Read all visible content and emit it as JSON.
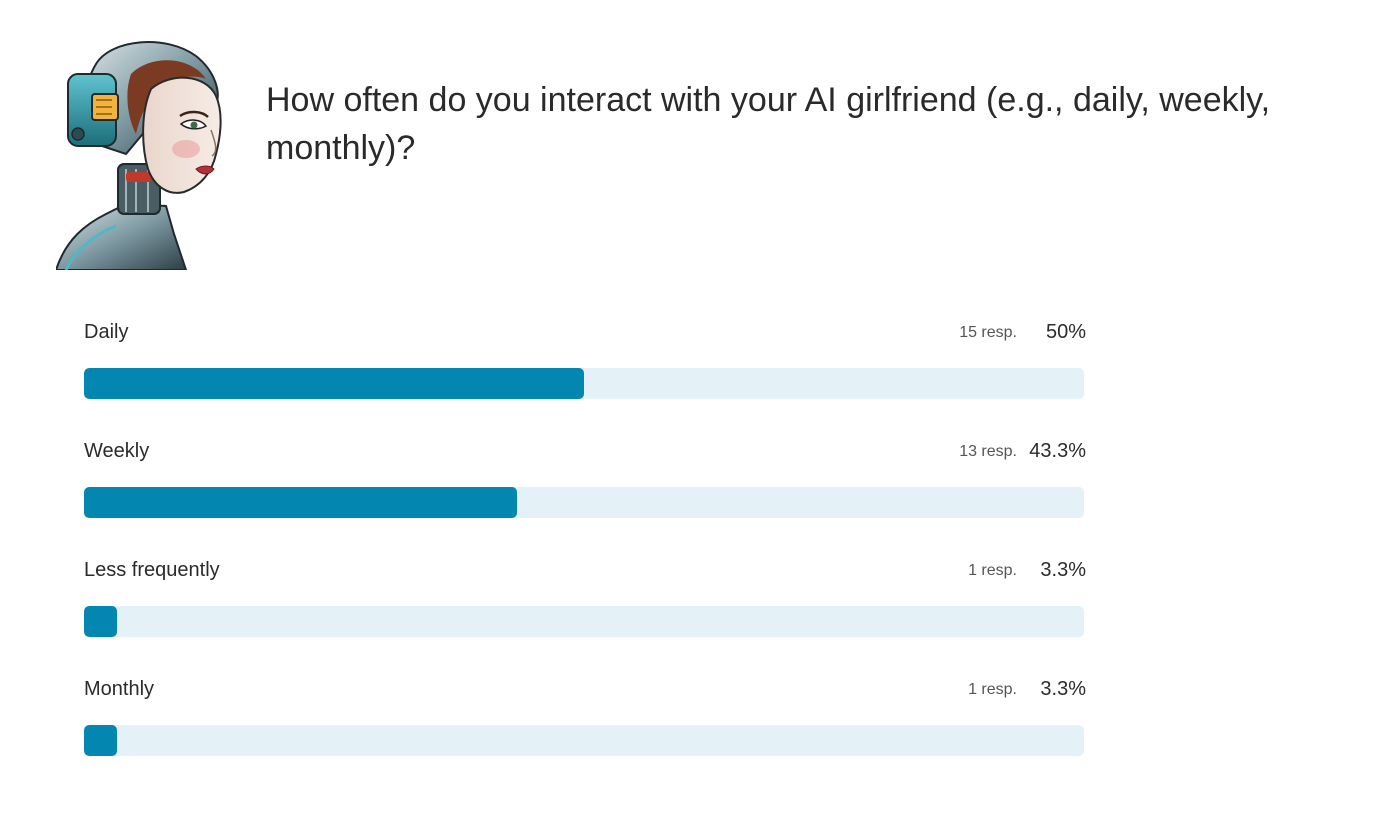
{
  "question": {
    "text": "How often do you interact with your AI girlfriend (e.g., daily, weekly, monthly)?"
  },
  "avatar": {
    "icon": "robot-woman-portrait"
  },
  "colors": {
    "bar_fill": "#0386b0",
    "bar_track": "#e4f1f7"
  },
  "chart_data": {
    "type": "bar",
    "orientation": "horizontal",
    "title": "How often do you interact with your AI girlfriend (e.g., daily, weekly, monthly)?",
    "categories": [
      "Daily",
      "Weekly",
      "Less frequently",
      "Monthly"
    ],
    "responses": [
      15,
      13,
      1,
      1
    ],
    "values": [
      50,
      43.3,
      3.3,
      3.3
    ],
    "xlim": [
      0,
      100
    ],
    "items": [
      {
        "label": "Daily",
        "responses_text": "15 resp.",
        "percent_text": "50%",
        "percent": 50
      },
      {
        "label": "Weekly",
        "responses_text": "13 resp.",
        "percent_text": "43.3%",
        "percent": 43.3
      },
      {
        "label": "Less frequently",
        "responses_text": "1 resp.",
        "percent_text": "3.3%",
        "percent": 3.3
      },
      {
        "label": "Monthly",
        "responses_text": "1 resp.",
        "percent_text": "3.3%",
        "percent": 3.3
      }
    ]
  }
}
